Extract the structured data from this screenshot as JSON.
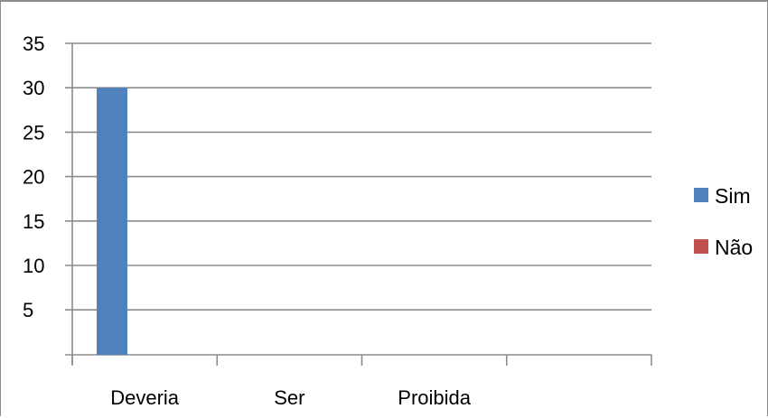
{
  "chart_data": {
    "type": "bar",
    "categories": [
      "Deveria",
      "Ser",
      "Proibida",
      ""
    ],
    "series": [
      {
        "name": "Sim",
        "values": [
          30,
          null,
          null,
          null
        ],
        "color": "#4f81bd"
      },
      {
        "name": "Não",
        "values": [
          null,
          null,
          null,
          null
        ],
        "color": "#c0504d"
      }
    ],
    "y_tick_labels": [
      "35",
      "30",
      "25",
      "20",
      "15",
      "10",
      "5"
    ],
    "ylim": [
      5,
      35
    ],
    "grid": true,
    "legend_position": "right"
  }
}
